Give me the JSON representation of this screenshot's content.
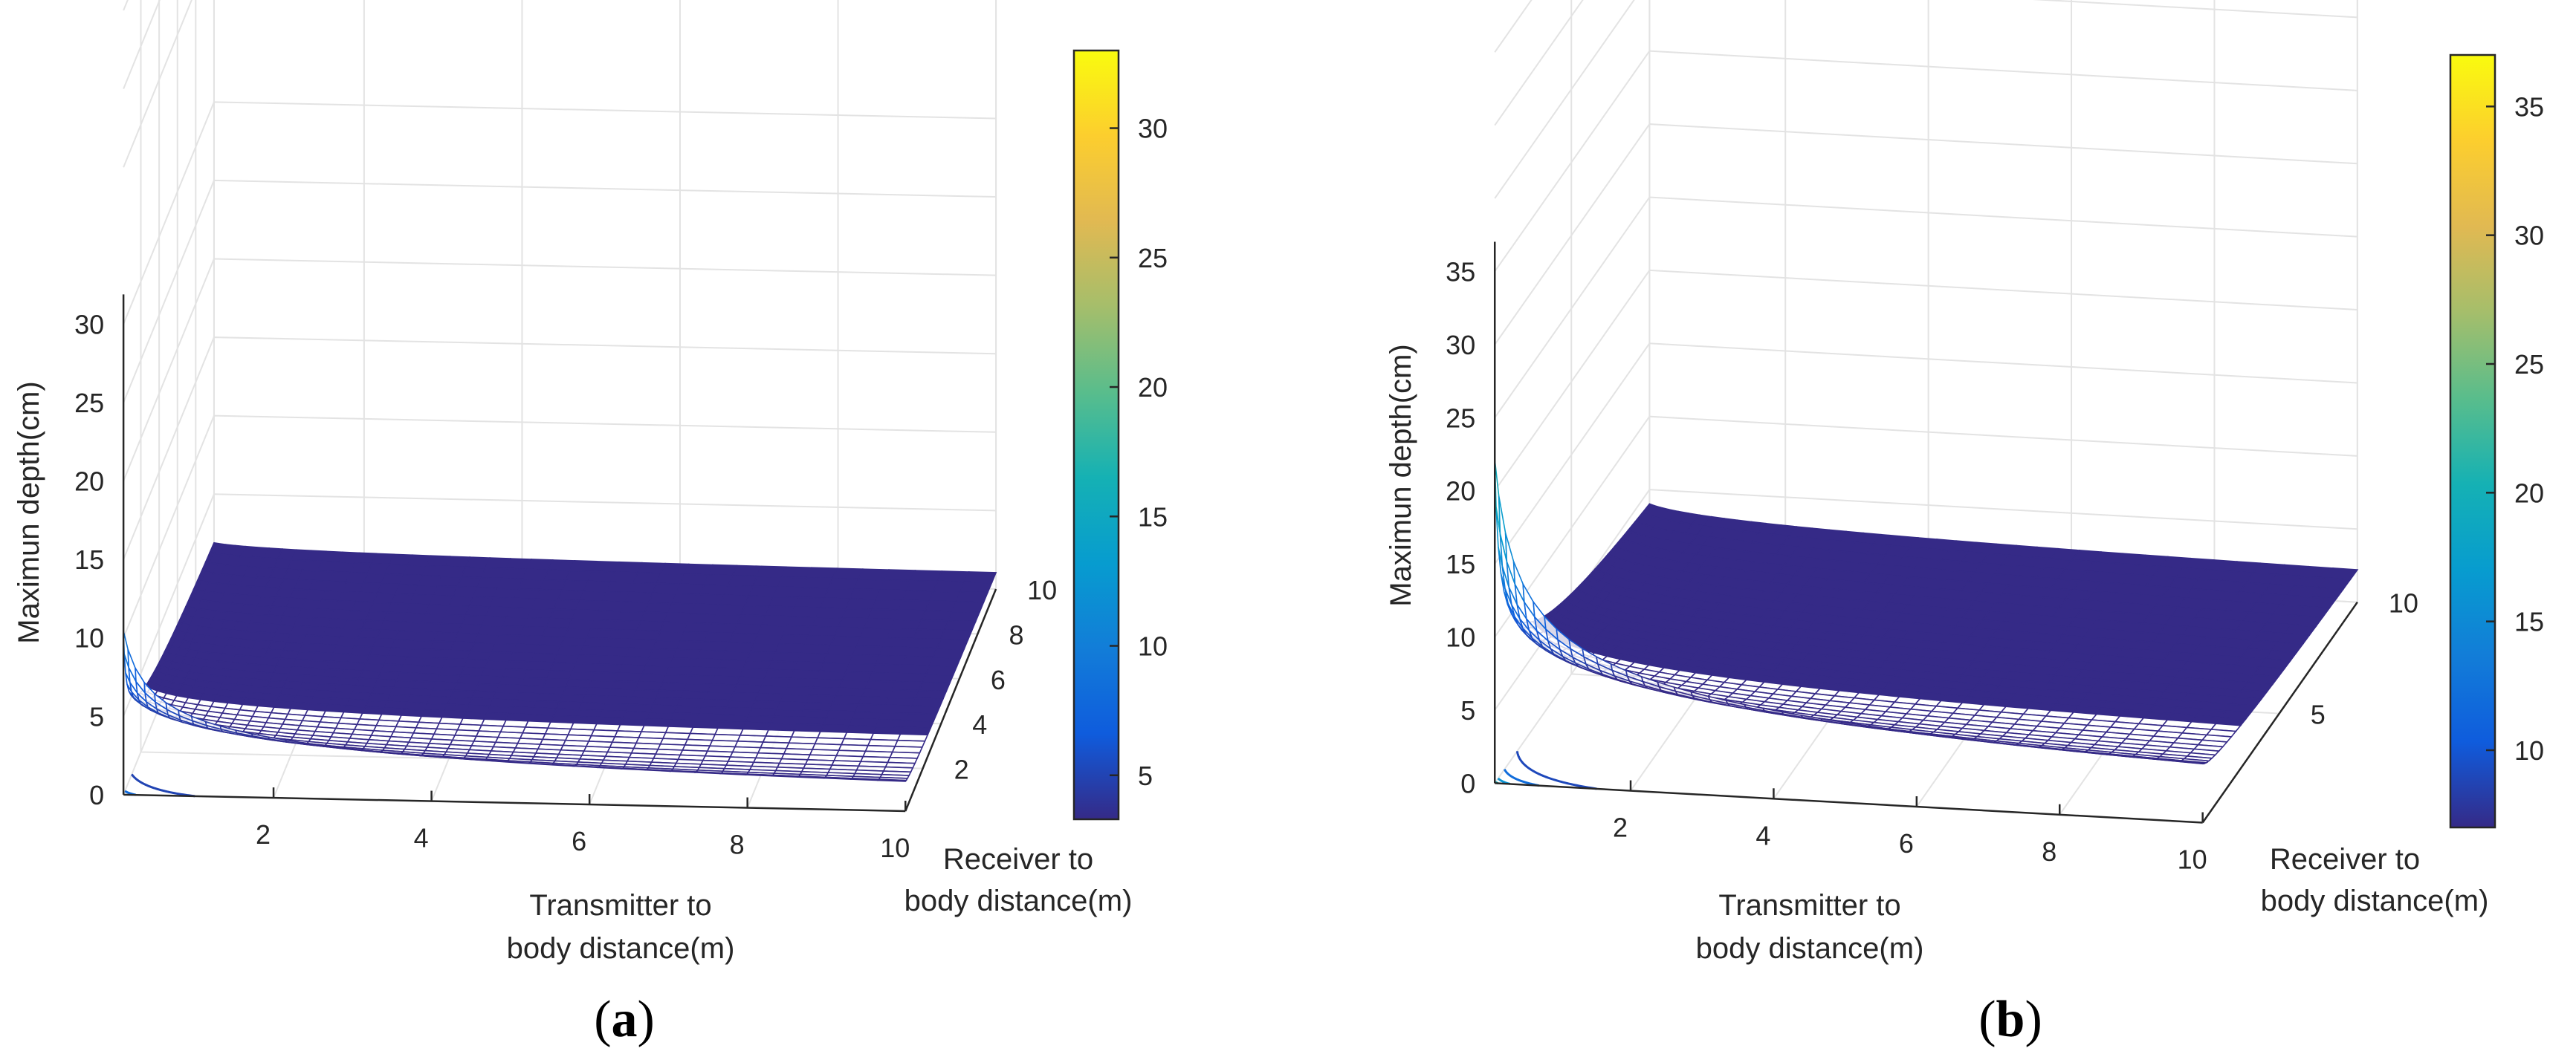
{
  "chart_data": [
    {
      "type": "surface3d",
      "panel_label_pre": "(",
      "panel_label_letter": "a",
      "panel_label_post": ")",
      "zlabel": "Maximun depth(cm)",
      "xlabel_line1": "Transmitter to",
      "xlabel_line2": "body distance(m)",
      "ylabel_line1": "Receiver to",
      "ylabel_line2": "body distance(m)",
      "x_ticks": [
        "2",
        "4",
        "6",
        "8",
        "10"
      ],
      "y_ticks": [
        "2",
        "4",
        "6",
        "8",
        "10"
      ],
      "z_ticks": [
        "0",
        "5",
        "10",
        "15",
        "20",
        "25",
        "30"
      ],
      "colorbar_ticks": [
        "5",
        "10",
        "15",
        "20",
        "25",
        "30"
      ],
      "xlim": [
        0.1,
        10
      ],
      "ylim": [
        0.1,
        10
      ],
      "zlim": [
        0,
        50
      ],
      "clim": [
        3.3,
        33
      ],
      "model": "depth = k / (sqrt(x) + sqrt(y))",
      "k": 6.6,
      "surface_range": {
        "x": [
          0.1,
          10
        ],
        "y": [
          0.1,
          10
        ]
      }
    },
    {
      "type": "surface3d",
      "panel_label_pre": "(",
      "panel_label_letter": "b",
      "panel_label_post": ")",
      "zlabel": "Maximun depth(cm)",
      "xlabel_line1": "Transmitter to",
      "xlabel_line2": "body distance(m)",
      "ylabel_line1": "Receiver to",
      "ylabel_line2": "body distance(m)",
      "x_ticks": [
        "2",
        "4",
        "6",
        "8",
        "10"
      ],
      "y_ticks": [
        "5",
        "10"
      ],
      "z_ticks": [
        "0",
        "5",
        "10",
        "15",
        "20",
        "25",
        "30",
        "35"
      ],
      "colorbar_ticks": [
        "10",
        "15",
        "20",
        "25",
        "30",
        "35"
      ],
      "xlim": [
        0.1,
        10
      ],
      "ylim": [
        0.1,
        10
      ],
      "zlim": [
        0,
        50
      ],
      "clim": [
        7,
        37
      ],
      "model": "depth = k / (sqrt(x) + sqrt(y))",
      "k": 14,
      "surface_range": {
        "x": [
          0.1,
          10
        ],
        "y": [
          0.1,
          10
        ]
      }
    }
  ]
}
